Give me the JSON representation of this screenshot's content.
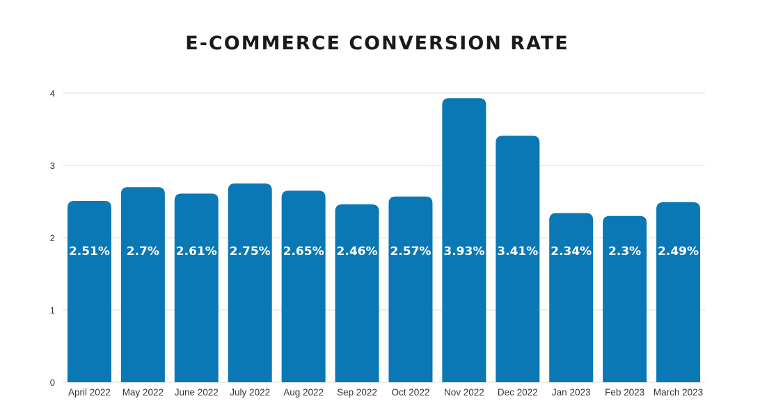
{
  "chart_data": {
    "type": "bar",
    "title": "E-COMMERCE CONVERSION RATE",
    "xlabel": "",
    "ylabel": "",
    "ylim": [
      0,
      4
    ],
    "yticks": [
      0,
      1,
      2,
      3,
      4
    ],
    "grid": true,
    "bar_color": "#0A78B4",
    "categories": [
      "April 2022",
      "May 2022",
      "June 2022",
      "July 2022",
      "Aug 2022",
      "Sep 2022",
      "Oct 2022",
      "Nov 2022",
      "Dec 2022",
      "Jan 2023",
      "Feb 2023",
      "March 2023"
    ],
    "values": [
      2.51,
      2.7,
      2.61,
      2.75,
      2.65,
      2.46,
      2.57,
      3.93,
      3.41,
      2.34,
      2.3,
      2.49
    ],
    "data_labels": [
      "2.51%",
      "2.7%",
      "2.61%",
      "2.75%",
      "2.65%",
      "2.46%",
      "2.57%",
      "3.93%",
      "3.41%",
      "2.34%",
      "2.3%",
      "2.49%"
    ]
  }
}
